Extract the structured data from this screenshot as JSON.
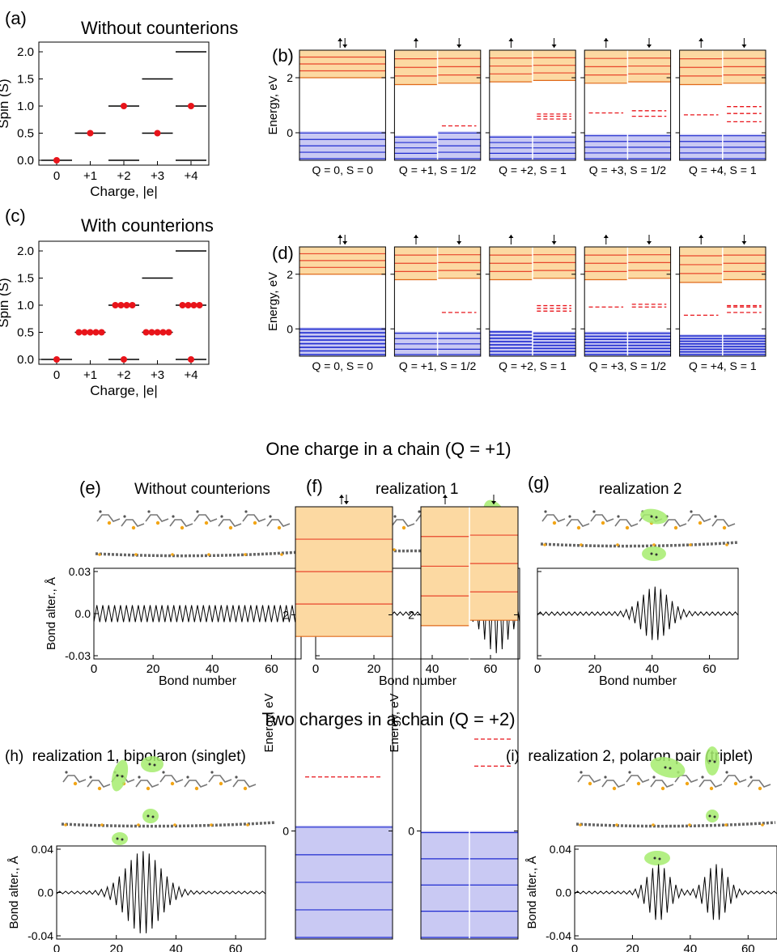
{
  "panel_letters": {
    "a": "(a)",
    "b": "(b)",
    "c": "(c)",
    "d": "(d)",
    "e": "(e)",
    "f": "(f)",
    "g": "(g)"
  },
  "titles": {
    "a": "Without counterions",
    "c": "With counterions",
    "e": "Without counterions",
    "f": "realization 1",
    "g": "realization 2",
    "h": "(h)  realization 1, bipolaron (singlet)",
    "i": "(i)  realization 2, polaron pair (triplet)"
  },
  "section_titles": {
    "one": "One charge in a chain (Q = +1)",
    "two": "Two charges in a chain (Q = +2)"
  },
  "spin_axis": {
    "ylabel": "Spin (S)",
    "xlabel": "Charge, |e|",
    "xticks": [
      "0",
      "+1",
      "+2",
      "+3",
      "+4"
    ],
    "yticks": [
      "0.0",
      "0.5",
      "1.0",
      "1.5",
      "2.0"
    ]
  },
  "energy_axis": {
    "ylabel": "Energy, eV",
    "yticks": [
      "0",
      "2"
    ]
  },
  "bond_axis": {
    "ylabel": "Bond alter., Å",
    "xlabel": "Bond number",
    "xticks": [
      "0",
      "20",
      "40",
      "60"
    ],
    "yticks_small": [
      "-0.03",
      "0.0",
      "0.03"
    ],
    "yticks_large": [
      "-0.04",
      "0.0",
      "0.04"
    ]
  },
  "arrows": {
    "up": "↑",
    "down": "↓",
    "updown": "↑↓"
  },
  "chart_data": [
    {
      "id": "a",
      "type": "scatter",
      "categories": [
        "0",
        "+1",
        "+2",
        "+3",
        "+4"
      ],
      "ylim": [
        0,
        2
      ],
      "allowed_spins": [
        [
          0
        ],
        [
          0.5
        ],
        [
          0,
          1
        ],
        [
          0.5,
          1.5
        ],
        [
          0,
          1,
          2
        ]
      ],
      "points": [
        {
          "x": 0,
          "y": 0,
          "n": 1
        },
        {
          "x": 1,
          "y": 0.5,
          "n": 1
        },
        {
          "x": 2,
          "y": 1,
          "n": 1
        },
        {
          "x": 3,
          "y": 0.5,
          "n": 1
        },
        {
          "x": 4,
          "y": 1,
          "n": 1
        }
      ]
    },
    {
      "id": "c",
      "type": "scatter",
      "categories": [
        "0",
        "+1",
        "+2",
        "+3",
        "+4"
      ],
      "ylim": [
        0,
        2
      ],
      "allowed_spins": [
        [
          0
        ],
        [
          0.5
        ],
        [
          0,
          1
        ],
        [
          0.5,
          1.5
        ],
        [
          0,
          1,
          2
        ]
      ],
      "points": [
        {
          "x": 0,
          "y": 0,
          "n": 1
        },
        {
          "x": 1,
          "y": 0.5,
          "n": 5
        },
        {
          "x": 2,
          "y": 1,
          "n": 4
        },
        {
          "x": 2,
          "y": 0,
          "n": 1
        },
        {
          "x": 3,
          "y": 0.5,
          "n": 5
        },
        {
          "x": 4,
          "y": 1,
          "n": 4
        },
        {
          "x": 4,
          "y": 0,
          "n": 1
        }
      ]
    },
    {
      "id": "b",
      "type": "level-diagram",
      "ylim": [
        -1,
        3
      ],
      "states": [
        {
          "label": "Q = 0, S = 0",
          "split": false,
          "cb": 2.0,
          "vb": 0.05,
          "mid_up": [],
          "mid_dn": []
        },
        {
          "label": "Q = +1, S = 1/2",
          "split": true,
          "cb_up": 1.75,
          "cb_dn": 1.8,
          "vb_up": -0.1,
          "vb_dn": 0.05,
          "mid_up": [],
          "mid_dn": [
            0.25
          ]
        },
        {
          "label": "Q = +2, S = 1",
          "split": true,
          "cb_up": 1.85,
          "cb_dn": 1.9,
          "vb_up": -0.1,
          "vb_dn": -0.1,
          "mid_up": [],
          "mid_dn": [
            0.5,
            0.6,
            0.68
          ]
        },
        {
          "label": "Q = +3, S = 1/2",
          "split": true,
          "cb_up": 1.8,
          "cb_dn": 1.85,
          "vb_up": -0.05,
          "vb_dn": -0.05,
          "mid_up": [
            0.72
          ],
          "mid_dn": [
            0.6,
            0.8
          ]
        },
        {
          "label": "Q = +4, S = 1",
          "split": true,
          "cb_up": 1.75,
          "cb_dn": 1.8,
          "vb_up": -0.05,
          "vb_dn": -0.05,
          "mid_up": [
            0.65
          ],
          "mid_dn": [
            0.4,
            0.7,
            0.95
          ]
        }
      ]
    },
    {
      "id": "d",
      "type": "level-diagram",
      "ylim": [
        -1,
        3
      ],
      "states": [
        {
          "label": "Q = 0, S = 0",
          "split": false,
          "cb": 2.0,
          "vb": 0.05,
          "mid_up": [],
          "mid_dn": []
        },
        {
          "label": "Q = +1, S = 1/2",
          "split": true,
          "cb_up": 1.8,
          "cb_dn": 1.85,
          "vb_up": -0.1,
          "vb_dn": -0.1,
          "mid_up": [],
          "mid_dn": [
            0.6
          ]
        },
        {
          "label": "Q = +2, S = 1",
          "split": true,
          "cb_up": 1.8,
          "cb_dn": 1.85,
          "vb_up": -0.05,
          "vb_dn": -0.1,
          "mid_up": [],
          "mid_dn": [
            0.65,
            0.75,
            0.85
          ]
        },
        {
          "label": "Q = +3, S = 1/2",
          "split": true,
          "cb_up": 1.8,
          "cb_dn": 1.85,
          "vb_up": -0.1,
          "vb_dn": -0.1,
          "mid_up": [
            0.8
          ],
          "mid_dn": [
            0.8,
            0.9
          ]
        },
        {
          "label": "Q = +4, S = 1",
          "split": true,
          "cb_up": 1.7,
          "cb_dn": 1.8,
          "vb_up": -0.2,
          "vb_dn": -0.2,
          "mid_up": [
            0.5
          ],
          "mid_dn": [
            0.6,
            0.8,
            0.85
          ]
        }
      ]
    },
    {
      "id": "e",
      "type": "line",
      "xlabel": "Bond number",
      "ylabel": "Bond alter., Å",
      "xlim": [
        0,
        70
      ],
      "ylim": [
        -0.03,
        0.03
      ],
      "kind": "uniform",
      "amplitude": 0.006,
      "center": 35,
      "width": 0
    },
    {
      "id": "f",
      "type": "line",
      "xlabel": "Bond number",
      "ylabel": "Bond alter., Å",
      "xlim": [
        0,
        70
      ],
      "ylim": [
        -0.03,
        0.03
      ],
      "kind": "polaron",
      "amplitude": 0.027,
      "center": 62,
      "width": 6
    },
    {
      "id": "g",
      "type": "line",
      "xlabel": "Bond number",
      "ylabel": "Bond alter., Å",
      "xlim": [
        0,
        70
      ],
      "ylim": [
        -0.03,
        0.03
      ],
      "kind": "polaron",
      "amplitude": 0.018,
      "center": 41,
      "width": 6.5
    },
    {
      "id": "h",
      "type": "line",
      "xlabel": "Bond number",
      "ylabel": "Bond alter., Å",
      "xlim": [
        0,
        70
      ],
      "ylim": [
        -0.04,
        0.04
      ],
      "kind": "polaron",
      "amplitude": 0.037,
      "center": 29,
      "width": 8
    },
    {
      "id": "i",
      "type": "line",
      "xlabel": "Bond number",
      "ylabel": "Bond alter., Å",
      "xlim": [
        0,
        70
      ],
      "ylim": [
        -0.04,
        0.04
      ],
      "kind": "pair",
      "amplitude": 0.025,
      "centers": [
        29,
        49
      ],
      "width": 5
    },
    {
      "id": "h_levels",
      "type": "level-diagram",
      "ylim": [
        -1,
        3
      ],
      "states": [
        {
          "label": "",
          "split": false,
          "cb": 1.8,
          "vb": 0.05,
          "mid_up": [
            0.5
          ],
          "mid_dn": []
        }
      ]
    },
    {
      "id": "i_levels",
      "type": "level-diagram",
      "ylim": [
        -1,
        3
      ],
      "states": [
        {
          "label": "",
          "split": true,
          "cb_up": 1.9,
          "cb_dn": 1.95,
          "vb_up": 0.0,
          "vb_dn": 0.0,
          "mid_up": [],
          "mid_dn": [
            0.6,
            0.85
          ]
        }
      ]
    }
  ]
}
